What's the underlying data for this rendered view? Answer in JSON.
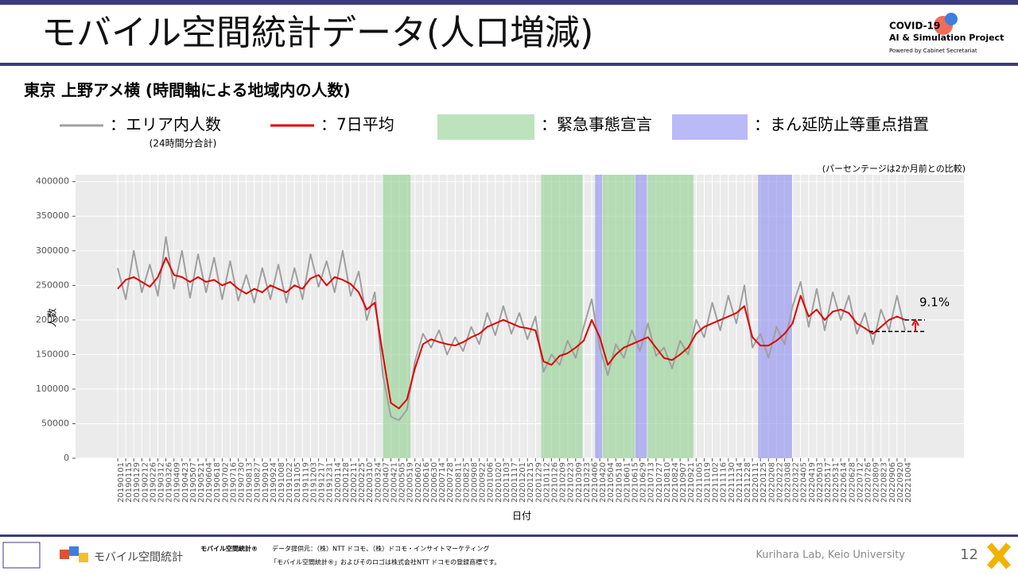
{
  "header": {
    "title": "モバイル空間統計データ(人口増減)",
    "logo_lines": [
      "COVID-19",
      "AI & Simulation Project",
      "Powered by Cabinet Secretariat"
    ]
  },
  "chart_data": {
    "type": "line",
    "title": "東京 上野アメ横 (時間軸による地域内の人数)",
    "legend_note": "(24時間分合計)",
    "note": "(パーセンテージは2か月前との比較)",
    "y_label": "人数",
    "x_label": "日付",
    "categories": [
      "20190101",
      "20190115",
      "20190129",
      "20190212",
      "20190226",
      "20190312",
      "20190326",
      "20190409",
      "20190423",
      "20190507",
      "20190521",
      "20190604",
      "20190618",
      "20190702",
      "20190716",
      "20190730",
      "20190813",
      "20190827",
      "20190910",
      "20190924",
      "20191008",
      "20191022",
      "20191105",
      "20191119",
      "20191203",
      "20191217",
      "20191231",
      "20200114",
      "20200128",
      "20200211",
      "20200225",
      "20200310",
      "20200324",
      "20200407",
      "20200421",
      "20200505",
      "20200519",
      "20200602",
      "20200616",
      "20200630",
      "20200714",
      "20200728",
      "20200811",
      "20200825",
      "20200908",
      "20200922",
      "20201006",
      "20201020",
      "20201103",
      "20201117",
      "20201201",
      "20201215",
      "20201229",
      "20210112",
      "20210126",
      "20210209",
      "20210223",
      "20210309",
      "20210323",
      "20210406",
      "20210420",
      "20210504",
      "20210518",
      "20210601",
      "20210615",
      "20210629",
      "20210713",
      "20210727",
      "20210810",
      "20210824",
      "20210907",
      "20210921",
      "20211005",
      "20211019",
      "20211102",
      "20211116",
      "20211130",
      "20211214",
      "20211228",
      "20220111",
      "20220125",
      "20220208",
      "20220222",
      "20220308",
      "20220322",
      "20220405",
      "20220419",
      "20220503",
      "20220517",
      "20220531",
      "20220614",
      "20220628",
      "20220712",
      "20220726",
      "20220809",
      "20220823",
      "20220906",
      "20220920",
      "20221004"
    ],
    "series": [
      {
        "name": "：エリア内人数",
        "color": "#a0a0a0",
        "values": [
          275000,
          230000,
          300000,
          240000,
          280000,
          235000,
          320000,
          245000,
          300000,
          232000,
          295000,
          240000,
          290000,
          230000,
          285000,
          228000,
          265000,
          225000,
          275000,
          230000,
          280000,
          225000,
          275000,
          230000,
          295000,
          248000,
          285000,
          240000,
          300000,
          235000,
          270000,
          200000,
          240000,
          120000,
          60000,
          55000,
          70000,
          140000,
          180000,
          160000,
          185000,
          150000,
          175000,
          155000,
          190000,
          165000,
          210000,
          178000,
          220000,
          180000,
          210000,
          172000,
          205000,
          125000,
          150000,
          135000,
          170000,
          145000,
          190000,
          230000,
          160000,
          120000,
          165000,
          145000,
          185000,
          155000,
          195000,
          148000,
          160000,
          130000,
          170000,
          150000,
          200000,
          175000,
          225000,
          185000,
          235000,
          195000,
          250000,
          160000,
          180000,
          145000,
          190000,
          165000,
          220000,
          255000,
          190000,
          245000,
          185000,
          240000,
          200000,
          235000,
          180000,
          210000,
          165000,
          215000,
          185000,
          235000,
          185000
        ]
      },
      {
        "name": "：7日平均",
        "color": "#e00000",
        "values": [
          245000,
          258000,
          262000,
          255000,
          248000,
          262000,
          290000,
          265000,
          262000,
          255000,
          262000,
          255000,
          258000,
          250000,
          255000,
          245000,
          238000,
          245000,
          240000,
          250000,
          245000,
          240000,
          250000,
          245000,
          260000,
          265000,
          250000,
          262000,
          258000,
          252000,
          240000,
          215000,
          225000,
          150000,
          80000,
          72000,
          85000,
          130000,
          165000,
          172000,
          168000,
          165000,
          163000,
          168000,
          175000,
          180000,
          190000,
          195000,
          200000,
          195000,
          190000,
          188000,
          185000,
          140000,
          135000,
          148000,
          152000,
          160000,
          170000,
          200000,
          175000,
          135000,
          150000,
          160000,
          165000,
          170000,
          175000,
          160000,
          145000,
          142000,
          150000,
          160000,
          180000,
          190000,
          195000,
          200000,
          205000,
          210000,
          220000,
          175000,
          163000,
          163000,
          170000,
          180000,
          195000,
          235000,
          205000,
          215000,
          200000,
          212000,
          215000,
          210000,
          195000,
          188000,
          180000,
          190000,
          200000,
          205000,
          200000
        ]
      }
    ],
    "bands": [
      {
        "name": "：緊急事態宣言",
        "color": "#8fd08f",
        "spans": [
          [
            20200407,
            20200525
          ],
          [
            20210108,
            20210321
          ],
          [
            20210425,
            20210620
          ],
          [
            20210712,
            20210930
          ]
        ]
      },
      {
        "name": "：まん延防止等重点措置",
        "color": "#8c8cf0",
        "spans": [
          [
            20210412,
            20210424
          ],
          [
            20210621,
            20210711
          ],
          [
            20220121,
            20220321
          ]
        ]
      }
    ],
    "annotation": {
      "text": "9.1%",
      "base": 183300,
      "current": 200000
    },
    "ylim": [
      0,
      410000
    ],
    "yticks": [
      0,
      50000,
      100000,
      150000,
      200000,
      250000,
      300000,
      350000,
      400000
    ],
    "grid": true
  },
  "footer": {
    "brand": "モバイル空間統計®",
    "source": "データ提供元：（株）NTT ドコモ、（株）ドコモ・インサイトマーケティング",
    "trademark": "「モバイル空間統計®」およびそのロゴは株式会社NTT ドコモの登録商標です。",
    "logo": "モバイル空間統計",
    "lab": "Kurihara Lab, Keio University",
    "page": "12"
  }
}
